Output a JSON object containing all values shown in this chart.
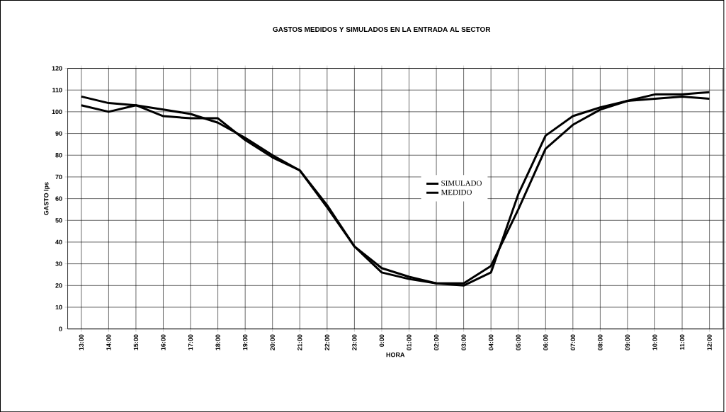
{
  "chart_data": {
    "type": "line",
    "title": "GASTOS MEDIDOS Y SIMULADOS EN LA ENTRADA AL SECTOR",
    "xlabel": "HORA",
    "ylabel": "GASTO lps",
    "categories": [
      "13:00",
      "14:00",
      "15:00",
      "16:00",
      "17:00",
      "18:00",
      "19:00",
      "20:00",
      "21:00",
      "22:00",
      "23:00",
      "0:00",
      "01:00",
      "02:00",
      "03:00",
      "04:00",
      "05:00",
      "06:00",
      "07:00",
      "08:00",
      "09:00",
      "10:00",
      "11:00",
      "12:00"
    ],
    "series": [
      {
        "name": "SIMULADO",
        "color": "#000000",
        "values": [
          107,
          104,
          103,
          101,
          99,
          95,
          88,
          80,
          73,
          57,
          38,
          28,
          24,
          21,
          21,
          29,
          55,
          83,
          94,
          101,
          105,
          108,
          108,
          109
        ]
      },
      {
        "name": "MEDIDO",
        "color": "#000000",
        "values": [
          103,
          100,
          103,
          98,
          97,
          97,
          87,
          79,
          73,
          56,
          38,
          26,
          23,
          21,
          20,
          26,
          62,
          89,
          98,
          102,
          105,
          106,
          107,
          106
        ]
      }
    ],
    "ylim": [
      0,
      120
    ],
    "yticks": [
      0,
      10,
      20,
      30,
      40,
      50,
      60,
      70,
      80,
      90,
      100,
      110,
      120
    ],
    "grid": true,
    "legend": "center",
    "marker": "none",
    "line_style": "solid"
  }
}
